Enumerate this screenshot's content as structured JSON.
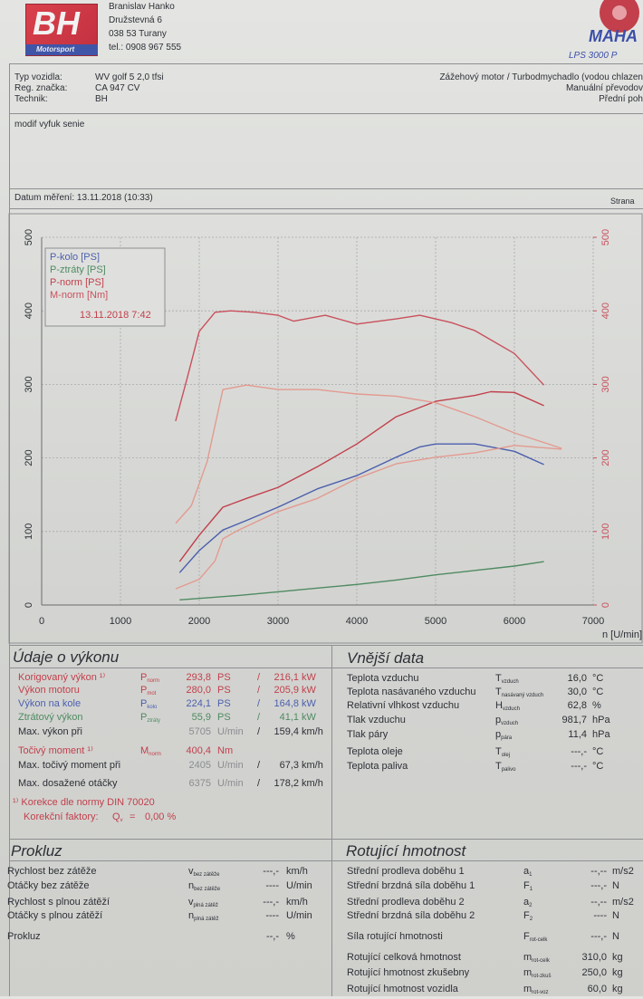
{
  "header": {
    "logo_letters": "BH",
    "logo": "Motorsport",
    "lines": [
      "Branislav Hanko",
      "Družstevná 6",
      "038 53 Turany",
      "tel.: 0908 967 555"
    ],
    "brand": "MAHA",
    "model": "LPS 3000 P"
  },
  "vehicle": {
    "rows": [
      [
        "Typ vozidla:",
        "WV golf 5 2,0 tfsi"
      ],
      [
        "Reg. značka:",
        "CA 947 CV"
      ],
      [
        "Technik:",
        "BH"
      ]
    ],
    "right": [
      "Zážehový motor / Turbodmychadlo (vodou chlazen",
      "Manuální převodov",
      "Přední poh"
    ]
  },
  "note": "modif vyfuk senie",
  "date": "Datum měření: 13.11.2018 (10:33)",
  "page": "Strana",
  "chart_data": {
    "type": "line",
    "legend_date": "13.11.2018 7:42",
    "xlabel": "n [U/min]",
    "legend": "upper left",
    "grid": true,
    "xlim": [
      0,
      7000
    ],
    "xticks": [
      0,
      1000,
      2000,
      3000,
      4000,
      5000,
      6000,
      7000
    ],
    "ylim": [
      0,
      500
    ],
    "yticks": [
      0,
      100,
      200,
      300,
      400,
      500
    ],
    "y2lim": [
      0,
      500
    ],
    "y2ticks": [
      0,
      100,
      200,
      300,
      400,
      500
    ],
    "series": [
      {
        "name": "P-kolo [PS]",
        "color": "#4b5fae",
        "x": [
          1750,
          2000,
          2300,
          2600,
          3000,
          3500,
          4000,
          4500,
          4800,
          5000,
          5500,
          6000,
          6375
        ],
        "values": [
          44,
          74,
          102,
          115,
          133,
          158,
          176,
          201,
          215,
          219,
          219,
          209,
          191
        ]
      },
      {
        "name": "P-ztráty [PS]",
        "color": "#4f8a62",
        "x": [
          1750,
          2500,
          3000,
          3500,
          4000,
          4500,
          5000,
          5500,
          6000,
          6375
        ],
        "values": [
          7,
          13,
          18,
          23,
          28,
          34,
          41,
          47,
          53,
          59
        ]
      },
      {
        "name": "P-norm [PS]",
        "color": "#c23f4b",
        "x": [
          1750,
          2000,
          2300,
          2600,
          3000,
          3500,
          4000,
          4500,
          5000,
          5500,
          5700,
          6000,
          6375
        ],
        "values": [
          59,
          95,
          133,
          145,
          160,
          188,
          219,
          256,
          277,
          285,
          290,
          289,
          271
        ]
      },
      {
        "name": "M-norm [Nm]",
        "color": "#c9505c",
        "axis": "y2",
        "x": [
          1700,
          1850,
          2000,
          2200,
          2400,
          2700,
          3000,
          3200,
          3600,
          4000,
          4500,
          4800,
          5200,
          5500,
          6000,
          6375
        ],
        "values": [
          250,
          310,
          372,
          398,
          400,
          398,
          394,
          386,
          394,
          382,
          389,
          394,
          384,
          373,
          342,
          299
        ]
      },
      {
        "color": "#e39a90",
        "x": [
          1700,
          2000,
          2200,
          2300,
          2500,
          3000,
          3500,
          4000,
          4500,
          5000,
          5500,
          6000,
          6600
        ],
        "values": [
          22,
          35,
          60,
          90,
          102,
          127,
          145,
          172,
          192,
          201,
          207,
          217,
          212
        ]
      },
      {
        "color": "#e39a90",
        "axis": "y2",
        "x": [
          1700,
          1900,
          2100,
          2300,
          2600,
          3000,
          3500,
          4000,
          4500,
          5000,
          5500,
          6000,
          6600
        ],
        "values": [
          111,
          135,
          195,
          293,
          299,
          293,
          293,
          287,
          284,
          275,
          256,
          234,
          213
        ]
      }
    ]
  },
  "performance": {
    "title": "Údaje o výkonu",
    "rows": [
      {
        "label": "Korigovaný výkon ¹⁾",
        "color": "#c23f4b",
        "symbol": {
          "base": "P",
          "sub": "norm"
        },
        "v1": "293,8",
        "u1": "PS",
        "sep": "/",
        "v2": "216,1",
        "u2": "kW"
      },
      {
        "label": "Výkon motoru",
        "color": "#c23f4b",
        "symbol": {
          "base": "P",
          "sub": "mot"
        },
        "v1": "280,0",
        "u1": "PS",
        "sep": "/",
        "v2": "205,9",
        "u2": "kW"
      },
      {
        "label": "Výkon na kole",
        "color": "#4b5fae",
        "symbol": {
          "base": "P",
          "sub": "kolo"
        },
        "v1": "224,1",
        "u1": "PS",
        "sep": "/",
        "v2": "164,8",
        "u2": "kW"
      },
      {
        "label": "Ztrátový výkon",
        "color": "#4f8a62",
        "symbol": {
          "base": "P",
          "sub": "ztráty"
        },
        "v1": "55,9",
        "u1": "PS",
        "sep": "/",
        "v2": "41,1",
        "u2": "kW"
      },
      {
        "label": "Max. výkon při",
        "v1": "5705",
        "u1": "U/min",
        "sep": "/",
        "v2": "159,4",
        "u2": "km/h"
      },
      {
        "label": "Točivý moment ¹⁾",
        "color": "#c23f4b",
        "symbol": {
          "base": "M",
          "sub": "norm"
        },
        "v1": "400,4",
        "u1": "Nm"
      },
      {
        "label": "Max. točivý moment při",
        "v1": "2405",
        "u1": "U/min",
        "sep": "/",
        "v2": "67,3",
        "u2": "km/h"
      },
      {
        "label": "Max. dosažené otáčky",
        "v1": "6375",
        "u1": "U/min",
        "sep": "/",
        "v2": "178,2",
        "u2": "km/h"
      }
    ],
    "footnote": "¹⁾ Korekce dle normy DIN 70020",
    "factors": {
      "text": "Korekční faktory:",
      "symbol": {
        "base": "Q",
        "sub": "v"
      },
      "eq": "=",
      "value": "0,00 %"
    }
  },
  "external": {
    "title": "Vnější data",
    "rows": [
      {
        "label": "Teplota vzduchu",
        "symbol": {
          "base": "T",
          "sub": "vzduch"
        },
        "value": "16,0",
        "unit": "°C"
      },
      {
        "label": "Teplota nasávaného vzduchu",
        "symbol": {
          "base": "T",
          "sub": "nasávaný vzduch"
        },
        "value": "30,0",
        "unit": "°C"
      },
      {
        "label": "Relativní vlhkost vzduchu",
        "symbol": {
          "base": "H",
          "sub": "vzduch"
        },
        "value": "62,8",
        "unit": "%"
      },
      {
        "label": "Tlak vzduchu",
        "symbol": {
          "base": "p",
          "sub": "vzduch"
        },
        "value": "981,7",
        "unit": "hPa"
      },
      {
        "label": "Tlak páry",
        "symbol": {
          "base": "p",
          "sub": "pára"
        },
        "value": "11,4",
        "unit": "hPa"
      },
      {
        "label": "Teplota oleje",
        "symbol": {
          "base": "T",
          "sub": "olej"
        },
        "value": "---,-",
        "unit": "°C"
      },
      {
        "label": "Teplota paliva",
        "symbol": {
          "base": "T",
          "sub": "palivo"
        },
        "value": "---,-",
        "unit": "°C"
      }
    ]
  },
  "slip": {
    "title": "Prokluz",
    "rows": [
      {
        "label": "Rychlost bez zátěže",
        "symbol": {
          "base": "v",
          "sub": "bez zátěže"
        },
        "value": "---,-",
        "unit": "km/h"
      },
      {
        "label": "Otáčky bez zátěže",
        "symbol": {
          "base": "n",
          "sub": "bez zátěže"
        },
        "value": "----",
        "unit": "U/min"
      },
      {
        "label": "Rychlost s plnou zátěží",
        "symbol": {
          "base": "v",
          "sub": "plná zátěž"
        },
        "value": "---,-",
        "unit": "km/h"
      },
      {
        "label": "Otáčky s plnou zátěží",
        "symbol": {
          "base": "n",
          "sub": "plná zátěž"
        },
        "value": "----",
        "unit": "U/min"
      },
      {
        "label": "Prokluz",
        "value": "--,-",
        "unit": "%"
      }
    ]
  },
  "rotating": {
    "title": "Rotující hmotnost",
    "rows": [
      {
        "label": "Střední prodleva doběhu 1",
        "symbol": {
          "base": "a",
          "sub": "1"
        },
        "value": "--,--",
        "unit": "m/s2"
      },
      {
        "label": "Střední brzdná síla doběhu 1",
        "symbol": {
          "base": "F",
          "sub": "1"
        },
        "value": "---,-",
        "unit": "N"
      },
      {
        "label": "Střední prodleva doběhu 2",
        "symbol": {
          "base": "a",
          "sub": "2"
        },
        "value": "--,--",
        "unit": "m/s2"
      },
      {
        "label": "Střední brzdná síla doběhu 2",
        "symbol": {
          "base": "F",
          "sub": "2"
        },
        "value": "----",
        "unit": "N"
      },
      {
        "label": "Síla rotující hmotnosti",
        "symbol": {
          "base": "F",
          "sub": "rot-celk"
        },
        "value": "---,-",
        "unit": "N"
      },
      {
        "label": "Rotující celková hmotnost",
        "symbol": {
          "base": "m",
          "sub": "rot-celk"
        },
        "value": "310,0",
        "unit": "kg"
      },
      {
        "label": "Rotující hmotnost zkušebny",
        "symbol": {
          "base": "m",
          "sub": "rot-zkuš"
        },
        "value": "250,0",
        "unit": "kg"
      },
      {
        "label": "Rotující hmotnost vozidla",
        "symbol": {
          "base": "m",
          "sub": "rot-voz"
        },
        "value": "60,0",
        "unit": "kg"
      }
    ]
  }
}
